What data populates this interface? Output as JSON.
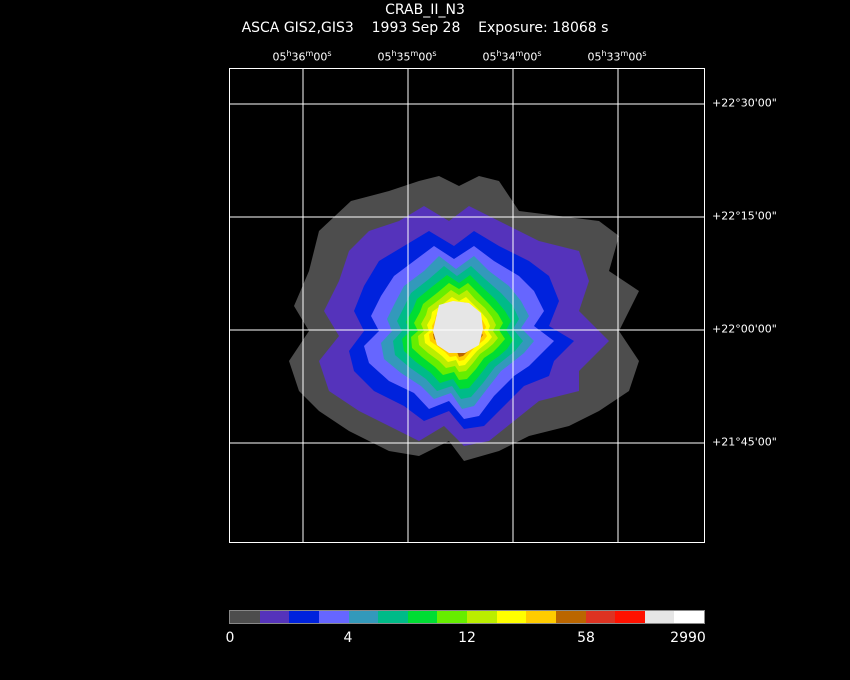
{
  "header": {
    "title": "CRAB_II_N3",
    "subtitle": "ASCA GIS2,GIS3    1993 Sep 28    Exposure: 18068 s"
  },
  "ra_labels": [
    {
      "h": "05",
      "m": "36",
      "s": "00"
    },
    {
      "h": "05",
      "m": "35",
      "s": "00"
    },
    {
      "h": "05",
      "m": "34",
      "s": "00"
    },
    {
      "h": "05",
      "m": "33",
      "s": "00"
    }
  ],
  "dec_labels": [
    "+22°30'00\"",
    "+22°15'00\"",
    "+22°00'00\"",
    "+21°45'00\""
  ],
  "colorbar": {
    "colors": [
      "#4d4d4d",
      "#5533bb",
      "#0022dd",
      "#6666ff",
      "#3399bb",
      "#00bb88",
      "#00dd33",
      "#66ee00",
      "#bbee00",
      "#ffff00",
      "#ffcc00",
      "#bb6600",
      "#dd3322",
      "#ff1100",
      "#e6e6e6",
      "#ffffff"
    ],
    "labels": [
      "0",
      "4",
      "12",
      "58",
      "2990"
    ]
  }
}
